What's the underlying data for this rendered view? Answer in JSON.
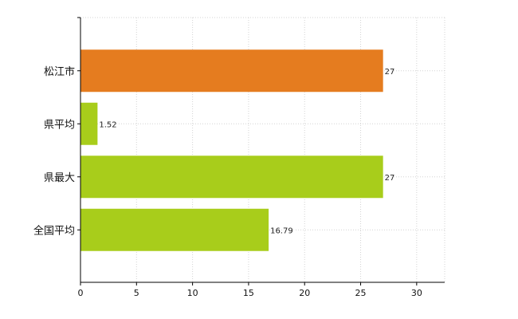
{
  "chart_data": {
    "type": "bar",
    "orientation": "horizontal",
    "categories": [
      "松江市",
      "県平均",
      "県最大",
      "全国平均"
    ],
    "values": [
      27,
      1.52,
      27,
      16.79
    ],
    "value_labels": [
      "27",
      "1.52",
      "27",
      "16.79"
    ],
    "bar_colors": [
      "#e57c1f",
      "#a8cd1b",
      "#a8cd1b",
      "#a8cd1b"
    ],
    "xlim": [
      0,
      32.5
    ],
    "xticks": [
      0,
      5,
      10,
      15,
      20,
      25,
      30
    ],
    "grid": true,
    "legend": false
  }
}
